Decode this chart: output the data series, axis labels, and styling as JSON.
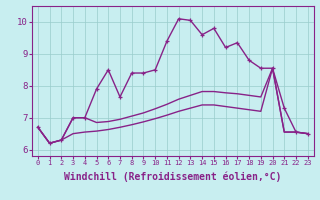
{
  "title": "",
  "xlabel": "Windchill (Refroidissement éolien,°C)",
  "x": [
    0,
    1,
    2,
    3,
    4,
    5,
    6,
    7,
    8,
    9,
    10,
    11,
    12,
    13,
    14,
    15,
    16,
    17,
    18,
    19,
    20,
    21,
    22,
    23
  ],
  "line1": [
    6.7,
    6.2,
    6.3,
    7.0,
    7.0,
    7.9,
    8.5,
    7.65,
    8.4,
    8.4,
    8.5,
    9.4,
    10.1,
    10.05,
    9.6,
    9.8,
    9.2,
    9.35,
    8.8,
    8.55,
    8.55,
    7.3,
    6.55,
    6.5
  ],
  "line2": [
    6.7,
    6.2,
    6.3,
    7.0,
    7.0,
    6.85,
    6.88,
    6.95,
    7.05,
    7.15,
    7.28,
    7.42,
    7.58,
    7.7,
    7.82,
    7.82,
    7.78,
    7.75,
    7.7,
    7.65,
    8.55,
    6.55,
    6.55,
    6.5
  ],
  "line3": [
    6.7,
    6.2,
    6.3,
    6.5,
    6.55,
    6.58,
    6.63,
    6.7,
    6.78,
    6.87,
    6.97,
    7.08,
    7.2,
    7.3,
    7.4,
    7.4,
    7.35,
    7.3,
    7.25,
    7.2,
    8.55,
    6.55,
    6.55,
    6.5
  ],
  "color": "#882288",
  "bg_color": "#c8eef0",
  "grid_color": "#99cccc",
  "xlim": [
    -0.5,
    23.5
  ],
  "ylim": [
    5.8,
    10.5
  ],
  "yticks": [
    6,
    7,
    8,
    9,
    10
  ],
  "xticks": [
    0,
    1,
    2,
    3,
    4,
    5,
    6,
    7,
    8,
    9,
    10,
    11,
    12,
    13,
    14,
    15,
    16,
    17,
    18,
    19,
    20,
    21,
    22,
    23
  ],
  "fontsize": 6.5,
  "xlabel_fontsize": 7
}
